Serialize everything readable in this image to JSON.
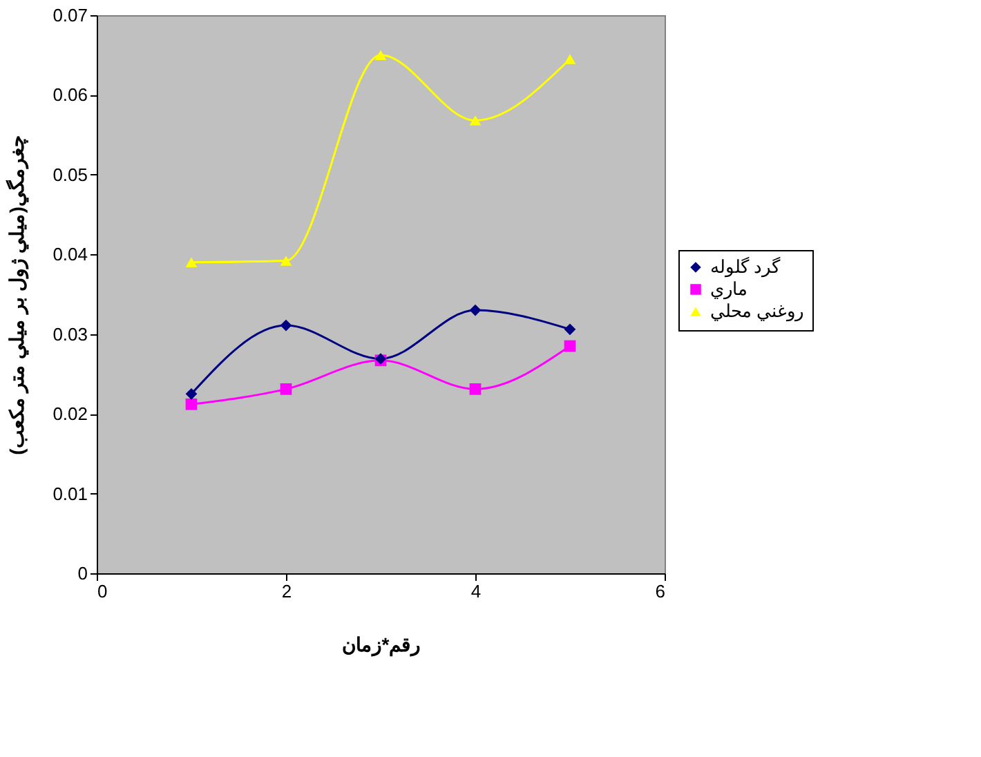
{
  "chart_data": {
    "type": "line",
    "xlabel": "رقم*زمان",
    "ylabel": "چغرمگي(ميلي ژول بر ميلي متر مكعب)",
    "x": [
      1,
      2,
      3,
      4,
      5
    ],
    "series": [
      {
        "name": "گرد گلوله",
        "color": "#000080",
        "marker": "diamond",
        "values": [
          0.0225,
          0.0311,
          0.0269,
          0.033,
          0.0306
        ]
      },
      {
        "name": "ماري",
        "color": "#ff00ff",
        "marker": "square",
        "values": [
          0.0212,
          0.0231,
          0.0267,
          0.0231,
          0.0285
        ]
      },
      {
        "name": "روغني محلي",
        "color": "#ffff00",
        "marker": "triangle",
        "values": [
          0.039,
          0.0392,
          0.065,
          0.0568,
          0.0645
        ]
      }
    ],
    "xlim": [
      0,
      6
    ],
    "xticks": [
      0,
      2,
      4,
      6
    ],
    "ylim": [
      0,
      0.07
    ],
    "yticks": [
      0,
      0.01,
      0.02,
      0.03,
      0.04,
      0.05,
      0.06,
      0.07
    ],
    "grid": false,
    "legend": "right",
    "line_style": "solid"
  }
}
